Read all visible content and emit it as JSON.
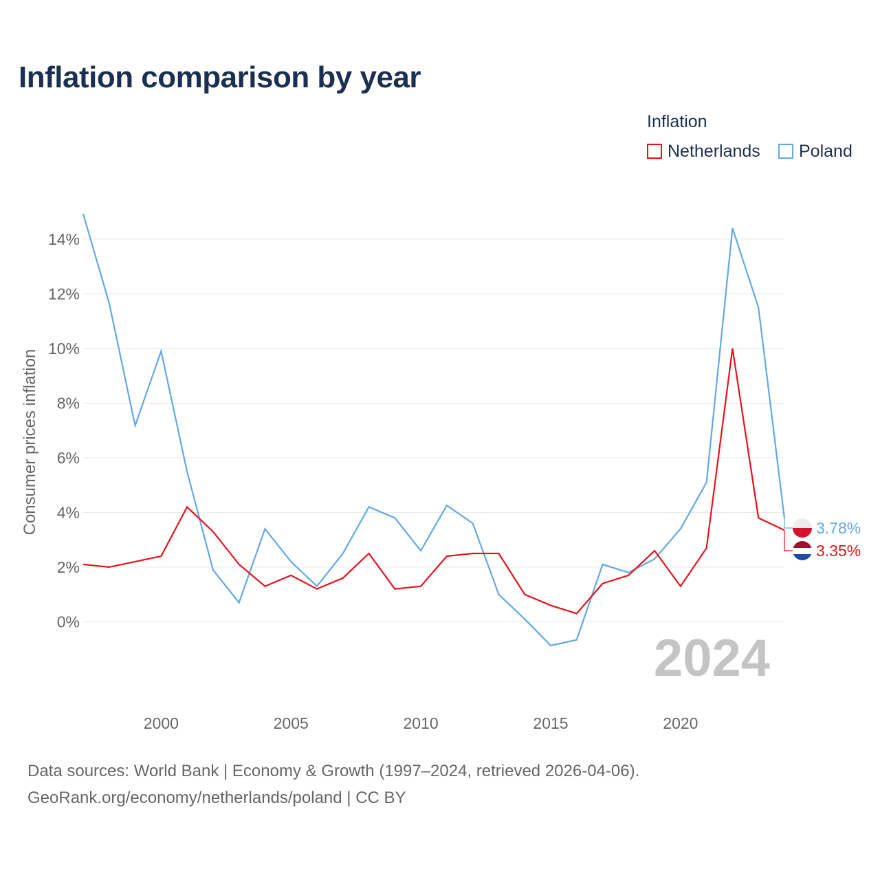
{
  "title": "Inflation comparison by year",
  "legend": {
    "title": "Inflation",
    "items": [
      {
        "name": "Netherlands",
        "color": "#e8101a"
      },
      {
        "name": "Poland",
        "color": "#62a8e5"
      }
    ]
  },
  "footer": {
    "line1": "Data sources: World Bank | Economy & Growth (1997–2024, retrieved 2026-04-06).",
    "line2": "GeoRank.org/economy/netherlands/poland | CC BY"
  },
  "chart_data": {
    "type": "line",
    "title": "Inflation comparison by year",
    "xlabel": "",
    "ylabel": "Consumer prices inflation",
    "x": [
      1997,
      1998,
      1999,
      2000,
      2001,
      2002,
      2003,
      2004,
      2005,
      2006,
      2007,
      2008,
      2009,
      2010,
      2011,
      2012,
      2013,
      2014,
      2015,
      2016,
      2017,
      2018,
      2019,
      2020,
      2021,
      2022,
      2023,
      2024
    ],
    "xlim": [
      1997,
      2024
    ],
    "ylim": [
      -1.7,
      14.9
    ],
    "x_ticks": [
      2000,
      2005,
      2010,
      2015,
      2020
    ],
    "y_ticks": [
      0,
      2,
      4,
      6,
      8,
      10,
      12,
      14
    ],
    "y_tick_labels": [
      "0%",
      "2%",
      "4%",
      "6%",
      "8%",
      "10%",
      "12%",
      "14%"
    ],
    "grid": true,
    "watermark_year": "2024",
    "series": [
      {
        "name": "Poland",
        "color": "#62a8e5",
        "end_label": "3.78%",
        "values": [
          14.92,
          11.66,
          7.18,
          9.9,
          5.49,
          1.9,
          0.7,
          3.4,
          2.2,
          1.3,
          2.5,
          4.2,
          3.8,
          2.6,
          4.26,
          3.6,
          1.0,
          0.1,
          -0.87,
          -0.66,
          2.1,
          1.8,
          2.3,
          3.4,
          5.1,
          14.4,
          11.5,
          3.78
        ]
      },
      {
        "name": "Netherlands",
        "color": "#e8101a",
        "end_label": "3.35%",
        "values": [
          2.1,
          2.0,
          2.2,
          2.4,
          4.2,
          3.3,
          2.1,
          1.3,
          1.7,
          1.2,
          1.6,
          2.5,
          1.2,
          1.3,
          2.4,
          2.5,
          2.5,
          1.0,
          0.6,
          0.3,
          1.4,
          1.7,
          2.6,
          1.3,
          2.7,
          10.0,
          3.8,
          3.35
        ]
      }
    ]
  }
}
